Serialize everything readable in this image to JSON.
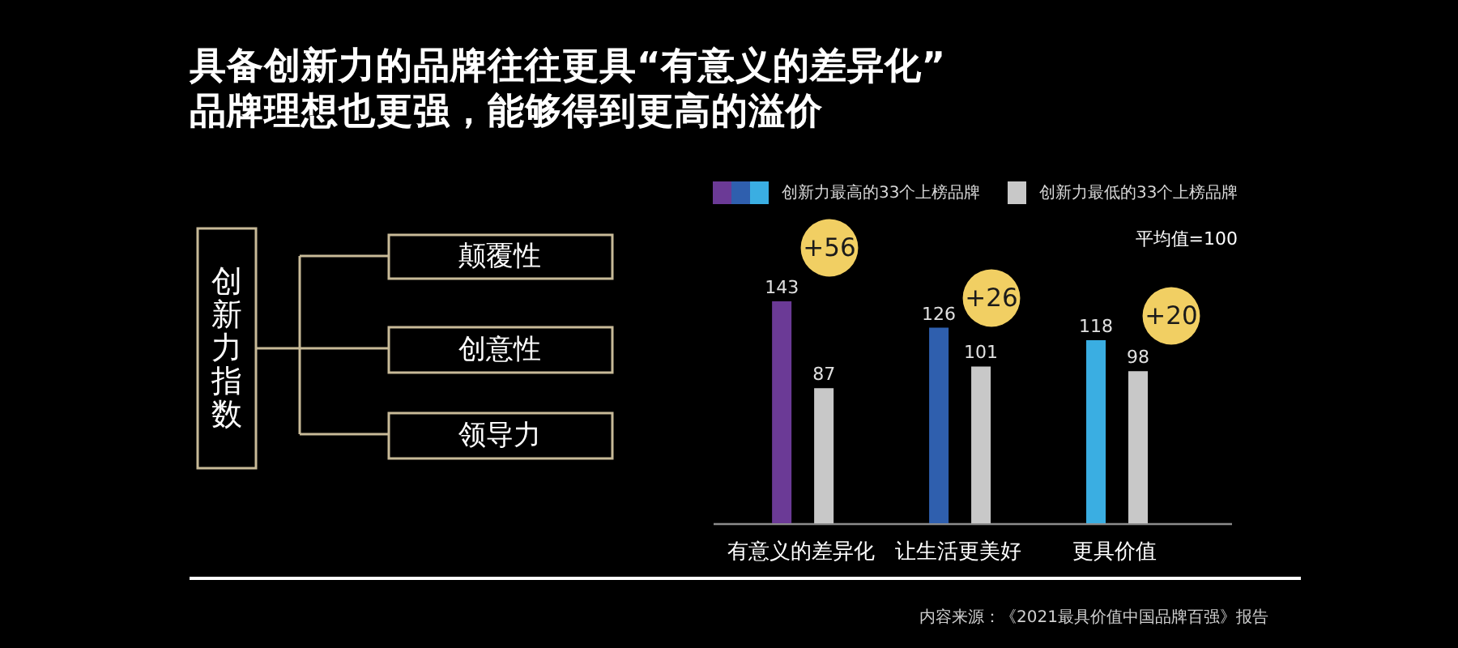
{
  "chart_data": {
    "type": "bar",
    "title": "具备创新力的品牌往往更具“有意义的差异化”\n品牌理想也更强，能够得到更高的溢价",
    "categories": [
      "有意义的差异化",
      "让生活更美好",
      "更具价值"
    ],
    "series": [
      {
        "name": "创新力最高的33个上榜品牌",
        "colors": [
          "#6b3a96",
          "#2f5fae",
          "#3aaee2"
        ],
        "values": [
          143,
          126,
          118
        ]
      },
      {
        "name": "创新力最低的33个上榜品牌",
        "color": "#c8c8c8",
        "values": [
          87,
          101,
          98
        ]
      }
    ],
    "data_labels": true,
    "legend": "top",
    "annotations": [
      "创新力指数",
      "颠覆性",
      "创意性",
      "领导力",
      "+56",
      "+26",
      "+20",
      "平均值=100",
      "内容来源：《2021最具价值中国品牌百强》报告"
    ]
  }
}
